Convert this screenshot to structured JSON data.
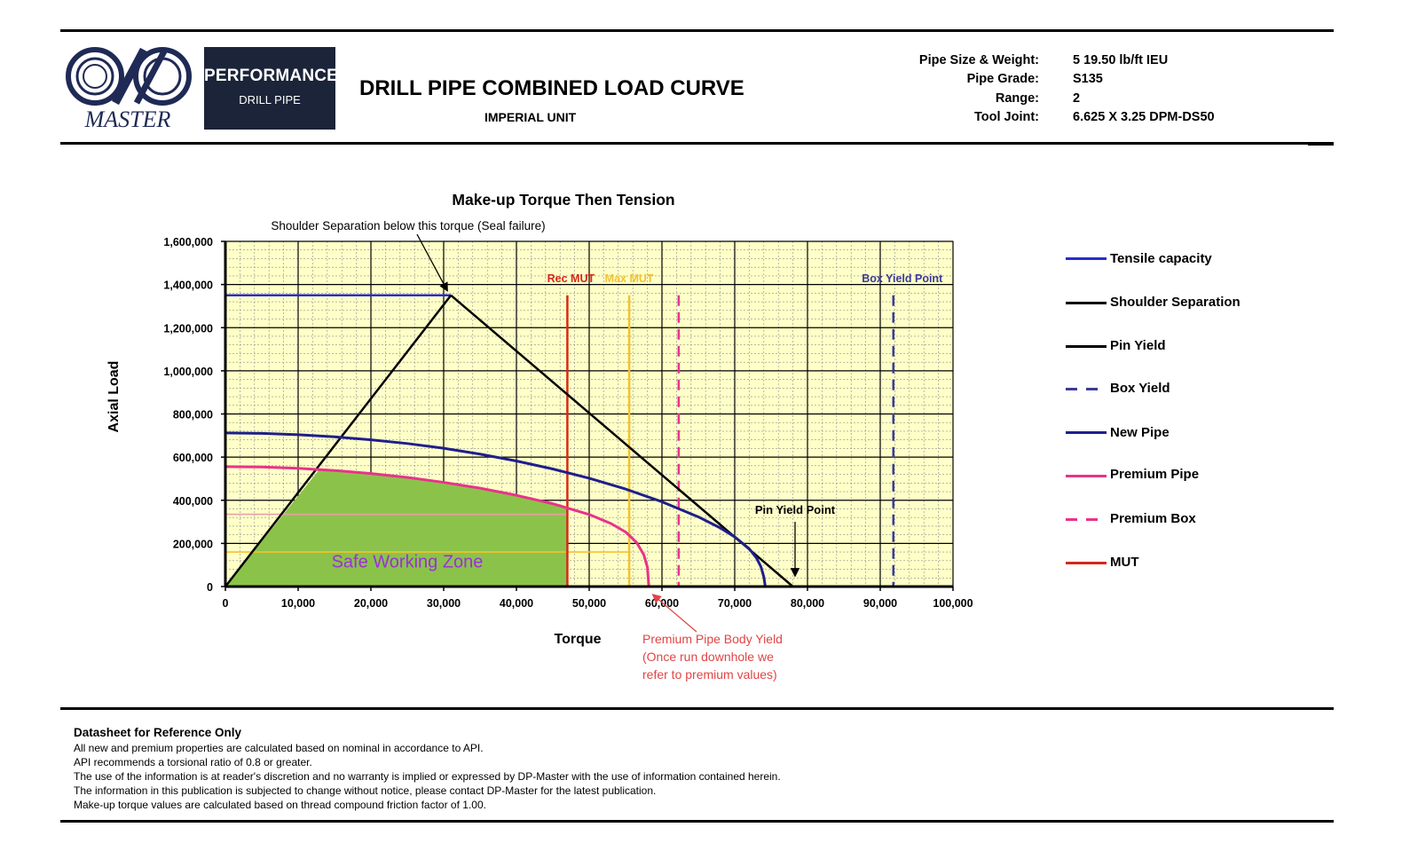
{
  "brand": {
    "logo_text": "MASTER",
    "panel_line1": "PERFORMANCE",
    "panel_line2": "DRILL PIPE",
    "panel_color": "#1b2438",
    "logo_color": "#1f2a55"
  },
  "header": {
    "title": "DRILL PIPE COMBINED LOAD CURVE",
    "unit": "IMPERIAL UNIT",
    "specs": [
      {
        "label": "Pipe Size & Weight:",
        "value": "5 19.50 lb/ft IEU"
      },
      {
        "label": "Pipe Grade:",
        "value": "S135"
      },
      {
        "label": "Range:",
        "value": "2"
      },
      {
        "label": "Tool Joint:",
        "value": "6.625 X 3.25 DPM-DS50"
      }
    ]
  },
  "chart_data": {
    "type": "line",
    "title": "Make-up Torque Then Tension",
    "xlabel": "Torque",
    "ylabel": "Axial Load",
    "xlim": [
      0,
      100000
    ],
    "ylim": [
      0,
      1600000
    ],
    "x_ticks": [
      0,
      10000,
      20000,
      30000,
      40000,
      50000,
      60000,
      70000,
      80000,
      90000,
      100000
    ],
    "x_tick_labels": [
      "0",
      "10,000",
      "20,000",
      "30,000",
      "40,000",
      "50,000",
      "60,000",
      "70,000",
      "80,000",
      "90,000",
      "100,000"
    ],
    "y_ticks": [
      0,
      200000,
      400000,
      600000,
      800000,
      1000000,
      1200000,
      1400000,
      1600000
    ],
    "y_tick_labels": [
      "0",
      "200,000",
      "400,000",
      "600,000",
      "800,000",
      "1,000,000",
      "1,200,000",
      "1,400,000",
      "1,600,000"
    ],
    "grid": true,
    "plot_background": "#ffffc8",
    "legend_position": "right",
    "legend": [
      {
        "label": "Tensile capacity",
        "color": "#2a2ad0",
        "style": "solid"
      },
      {
        "label": "Shoulder Separation",
        "color": "#000000",
        "style": "solid"
      },
      {
        "label": "Pin Yield",
        "color": "#000000",
        "style": "solid"
      },
      {
        "label": "Box Yield",
        "color": "#3b3b9a",
        "style": "dashed"
      },
      {
        "label": "New Pipe",
        "color": "#1e1e8c",
        "style": "solid"
      },
      {
        "label": "Premium Pipe",
        "color": "#e8338a",
        "style": "solid"
      },
      {
        "label": "Premium Box",
        "color": "#e8338a",
        "style": "dashed"
      },
      {
        "label": "MUT",
        "color": "#d42a1a",
        "style": "solid"
      }
    ],
    "series": [
      {
        "key": "tensile",
        "color": "#2a2ad0",
        "x": [
          0,
          31000
        ],
        "y": [
          1350000,
          1350000
        ]
      },
      {
        "key": "shoulder",
        "color": "#000000",
        "x": [
          0,
          31000
        ],
        "y": [
          0,
          1350000
        ]
      },
      {
        "key": "pin_yield",
        "color": "#000000",
        "x": [
          31000,
          78000
        ],
        "y": [
          1350000,
          0
        ]
      },
      {
        "key": "new_pipe",
        "color": "#1e1e8c",
        "x": [
          0,
          5000,
          10000,
          15000,
          20000,
          25000,
          30000,
          35000,
          40000,
          45000,
          50000,
          55000,
          60000,
          65000,
          68000,
          70000,
          72000,
          73000,
          73600,
          74000,
          74200
        ],
        "y": [
          712000,
          710000,
          704000,
          694000,
          680000,
          663000,
          641000,
          614000,
          582000,
          545000,
          502000,
          452000,
          393000,
          323000,
          272000,
          230000,
          175000,
          132000,
          92000,
          45000,
          0
        ]
      },
      {
        "key": "premium_pipe",
        "color": "#e8338a",
        "x": [
          0,
          5000,
          10000,
          15000,
          20000,
          25000,
          30000,
          35000,
          40000,
          45000,
          50000,
          53000,
          55000,
          56500,
          57500,
          58000,
          58200
        ],
        "y": [
          556000,
          554000,
          548000,
          538000,
          524000,
          506000,
          483000,
          456000,
          423000,
          384000,
          334000,
          292000,
          253000,
          205000,
          148000,
          90000,
          0
        ]
      }
    ],
    "vertical_lines": [
      {
        "key": "left_edge",
        "x": 0,
        "color": "#e8338a",
        "style": "solid"
      },
      {
        "key": "rec_mut",
        "x": 47000,
        "color": "#d42a1a",
        "style": "solid",
        "label": "Rec MUT"
      },
      {
        "key": "max_mut",
        "x": 55500,
        "color": "#f2c230",
        "style": "solid",
        "label": "Max MUT"
      },
      {
        "key": "premium_box",
        "x": 62300,
        "color": "#e8338a",
        "style": "dashed"
      },
      {
        "key": "box_yield",
        "x": 91800,
        "color": "#3b3b9a",
        "style": "dashed",
        "label": "Box Yield Point"
      }
    ],
    "horizontal_guides": [
      {
        "key": "rec_guide",
        "y": 335000,
        "x_end": 47000,
        "color": "#e8a0a8"
      },
      {
        "key": "max_guide",
        "y": 160000,
        "x_end": 55500,
        "color": "#f2c230"
      }
    ],
    "safe_zone": {
      "label": "Safe Working Zone",
      "color": "#8bc34a",
      "label_color": "#9b30d9",
      "x": [
        0,
        13000,
        15000,
        20000,
        25000,
        30000,
        35000,
        40000,
        45000,
        47000,
        47000
      ],
      "y": [
        0,
        546000,
        541000,
        524000,
        506000,
        483000,
        456000,
        423000,
        384000,
        360000,
        0
      ]
    },
    "annotations": [
      {
        "key": "shoulder_note",
        "text": "Shoulder Separation below this torque (Seal failure)",
        "arrow_to": [
          31000,
          1350000
        ]
      },
      {
        "key": "pin_yield_point",
        "text": "Pin Yield Point",
        "arrow_to": [
          78000,
          40000
        ]
      },
      {
        "key": "premium_note",
        "lines": [
          "Premium Pipe Body Yield",
          "(Once run downhole we",
          "refer to premium values)"
        ],
        "color": "#e04545",
        "arrow_to": [
          58000,
          0
        ]
      }
    ]
  },
  "disclaimer": {
    "heading": "Datasheet for Reference Only",
    "lines": [
      "All new and premium properties are calculated based on nominal in accordance to  API.",
      "API recommends  a torsional ratio of 0.8 or greater.",
      "The use of the information  is at reader's  discretion and  no warranty is implied or expressed by DP-Master with the use of information contained herein.",
      "The information in this publication is subjected to change without notice, please contact DP-Master for the latest publication.",
      "Make-up torque values are calculated based on thread compound friction factor of 1.00."
    ]
  }
}
